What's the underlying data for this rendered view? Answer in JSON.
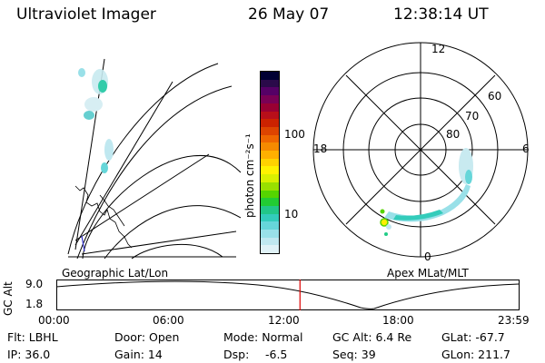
{
  "header": {
    "instrument": "Ultraviolet Imager",
    "date": "26 May 07",
    "time": "12:38:14 UT"
  },
  "geo_panel": {
    "label": "Geographic Lat/Lon"
  },
  "colorbar": {
    "unit_label": "photon cm⁻²s⁻¹",
    "ticks": [
      "100",
      "10"
    ],
    "colors": [
      "#000033",
      "#2a0a4a",
      "#550066",
      "#7a0055",
      "#990033",
      "#b80f1a",
      "#cc2200",
      "#dd4400",
      "#ee6600",
      "#f58a00",
      "#ffb000",
      "#ffd200",
      "#fff200",
      "#d9f000",
      "#99e000",
      "#55d400",
      "#22cc33",
      "#22c788",
      "#33ccbb",
      "#66d6d9",
      "#99e0e8",
      "#c0e8f0",
      "#e0f2f7"
    ]
  },
  "polar_panel": {
    "label": "Apex MLat/MLT",
    "hour_labels": {
      "top": "12",
      "left": "18",
      "right": "6",
      "bottom": "0"
    },
    "lat_labels": [
      "60",
      "70",
      "80"
    ]
  },
  "altitude_plot": {
    "ylabel": "GC Alt",
    "y_ticks": [
      "9.0",
      "1.8"
    ],
    "x_ticks": [
      "00:00",
      "06:00",
      "12:00",
      "18:00",
      "23:59"
    ],
    "current_time_fraction": 0.526
  },
  "info": {
    "row1": {
      "filter": "Flt: LBHL",
      "door": "Door: Open",
      "mode": "Mode: Normal",
      "gc_alt": "GC Alt: 6.4 Re",
      "glat": "GLat: -67.7"
    },
    "row2": {
      "ip": "IP: 36.0",
      "gain": "Gain: 14",
      "dsp_label": "Dsp:",
      "dsp_value": "-6.5",
      "seq": "Seq: 39",
      "glon": "GLon: 211.7"
    }
  }
}
